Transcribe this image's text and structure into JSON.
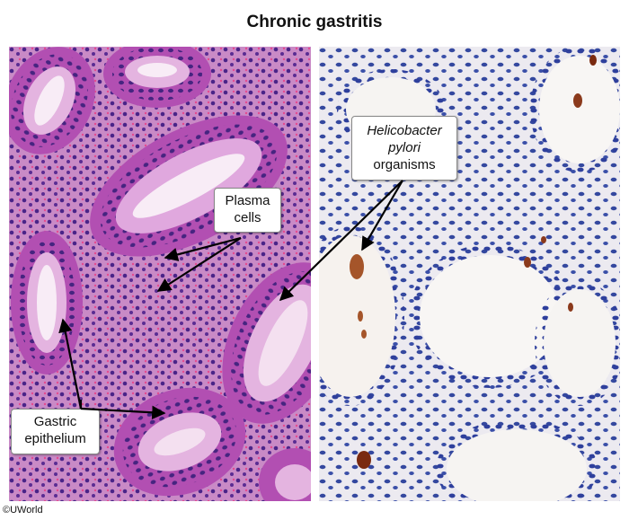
{
  "title": "Chronic gastritis",
  "labels": {
    "plasma": [
      "Plasma",
      "cells"
    ],
    "hpylori": [
      "Helicobacter",
      "pylori",
      "organisms"
    ],
    "gastric": [
      "Gastric",
      "epithelium"
    ]
  },
  "copyright": "©UWorld",
  "colors": {
    "he_background": "#c47fc0",
    "he_gland_lumen": "#f4e3f0",
    "he_nuclei": "#2c1a6e",
    "ihc_background": "#f2f0ef",
    "ihc_nuclei": "#2e3f9c",
    "ihc_stain": "#8b3a1c",
    "arrow": "#000000"
  }
}
